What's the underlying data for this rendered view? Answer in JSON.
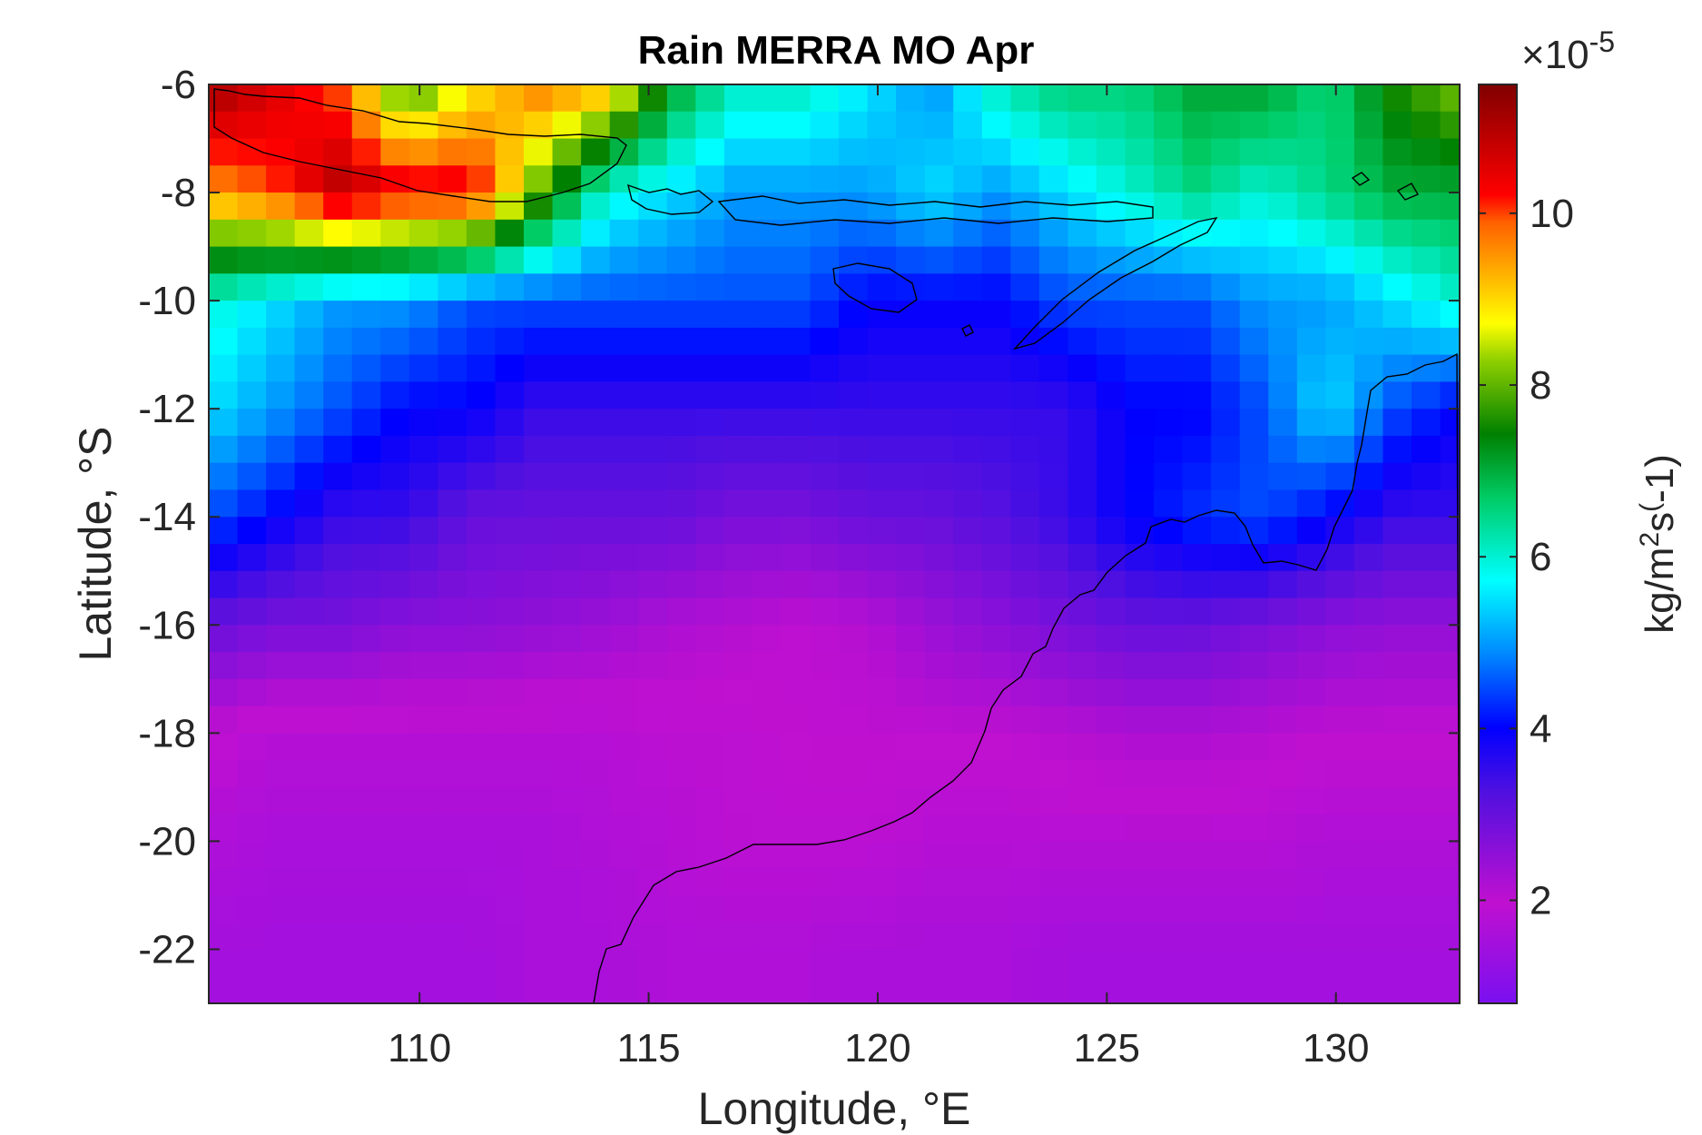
{
  "chart_data": {
    "type": "heatmap",
    "title": "Rain MERRA MO Apr",
    "xlabel": "Longitude, °E",
    "ylabel": "Latitude, °S",
    "xlim": [
      105.4,
      132.7
    ],
    "ylim": [
      -23,
      -6
    ],
    "x_ticks": [
      110,
      115,
      120,
      125,
      130
    ],
    "x_tick_labels": [
      "110",
      "115",
      "120",
      "125",
      "130"
    ],
    "y_ticks": [
      -6,
      -8,
      -10,
      -12,
      -14,
      -16,
      -18,
      -20,
      -22
    ],
    "y_tick_labels": [
      "-6",
      "-8",
      "-10",
      "-12",
      "-14",
      "-16",
      "-18",
      "-20",
      "-22"
    ],
    "colorbar": {
      "label_parts": [
        "kg/m",
        "2",
        "s",
        "(",
        "-1)"
      ],
      "multiplier_parts": [
        "×10",
        "-5"
      ],
      "range": [
        0.8,
        11.5
      ],
      "ticks": [
        2,
        4,
        6,
        8,
        10
      ],
      "tick_labels": [
        "2",
        "4",
        "6",
        "8",
        "10"
      ],
      "colormap": "parula-like: violet-magenta-blue-cyan-green-yellow-red-darkred"
    },
    "grid_resolution_deg": [
      0.625,
      0.5
    ],
    "field_description": "Gridded monthly rain rate over ocean and land off north-west Australia; heavy rain (~10-11.5) over Java at upper-left, moderate (~5-7) over the Lesser Sunda islands, low (~1-3) over the southern ocean and Western Australian coast",
    "grid_rows_sampled": [
      {
        "lat": -6.25,
        "values": [
          11,
          10.5,
          10,
          8,
          9,
          9.5,
          9,
          7,
          6,
          6,
          5.5,
          5,
          6,
          6.5,
          6.5,
          7,
          7,
          6.5,
          7.5,
          8
        ]
      },
      {
        "lat": -8.0,
        "values": [
          9.5,
          10,
          11,
          10.5,
          10.5,
          8,
          6,
          5.5,
          5,
          5,
          5,
          5.5,
          5,
          5.5,
          6,
          6.5,
          6,
          6.5,
          7,
          7
        ]
      },
      {
        "lat": -10.0,
        "values": [
          6,
          5.5,
          5,
          5,
          4.5,
          4.5,
          4.5,
          4.5,
          4.5,
          4.5,
          4,
          4,
          4,
          4.5,
          4.5,
          4.5,
          5,
          5,
          5.5,
          6
        ]
      },
      {
        "lat": -12.0,
        "values": [
          5.5,
          5,
          4.5,
          4,
          4,
          3.5,
          3.5,
          3.5,
          3.5,
          3.5,
          3.5,
          3.5,
          3.5,
          3.5,
          4,
          4,
          4.5,
          5.5,
          4.5,
          4
        ]
      },
      {
        "lat": -14.0,
        "values": [
          4.5,
          4,
          3.5,
          3.5,
          3,
          3,
          3,
          3,
          2.8,
          2.8,
          3,
          3,
          3.2,
          3.5,
          4,
          4.3,
          4.5,
          4,
          3.5,
          3.5
        ]
      },
      {
        "lat": -16.0,
        "values": [
          3,
          2.8,
          2.8,
          2.6,
          2.6,
          2.5,
          2.4,
          2.2,
          2.1,
          2,
          2.1,
          2.4,
          2.6,
          2.8,
          3,
          3,
          2.8,
          2.6,
          2.5,
          2.5
        ]
      },
      {
        "lat": -18.0,
        "values": [
          2,
          1.8,
          1.8,
          1.8,
          1.8,
          1.8,
          1.8,
          1.9,
          1.9,
          2,
          2,
          2,
          2,
          2.1,
          2.2,
          2.2,
          2.1,
          2,
          2,
          2
        ]
      },
      {
        "lat": -20.0,
        "values": [
          1.7,
          1.6,
          1.6,
          1.6,
          1.6,
          1.6,
          1.7,
          1.8,
          1.9,
          1.9,
          1.9,
          1.8,
          1.8,
          1.8,
          1.8,
          1.8,
          1.8,
          1.7,
          1.7,
          1.7
        ]
      },
      {
        "lat": -22.0,
        "values": [
          1.5,
          1.5,
          1.5,
          1.5,
          1.5,
          1.6,
          1.6,
          1.7,
          1.7,
          1.7,
          1.6,
          1.6,
          1.6,
          1.5,
          1.5,
          1.5,
          1.5,
          1.5,
          1.5,
          1.5
        ]
      }
    ]
  }
}
